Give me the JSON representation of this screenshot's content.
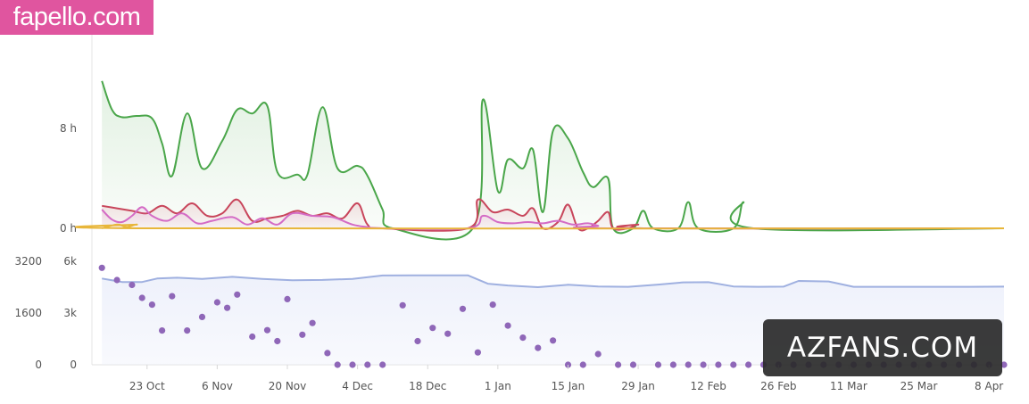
{
  "watermarks": {
    "top": "fapello.com",
    "bottom": "AZFANS.COM"
  },
  "chart_data": [
    {
      "type": "area",
      "y_ticks": [
        "8 h",
        "0 h"
      ],
      "y_tick_values": [
        8,
        0
      ],
      "ylim": [
        0,
        12
      ],
      "x_tick_labels": [
        "23 Oct",
        "6 Nov",
        "20 Nov",
        "4 Dec",
        "18 Dec",
        "1 Jan",
        "15 Jan",
        "29 Jan",
        "12 Feb",
        "26 Feb",
        "11 Mar",
        "25 Mar",
        "8 Apr"
      ],
      "x_tick_days": [
        14,
        28,
        42,
        56,
        70,
        84,
        98,
        112,
        126,
        140,
        154,
        168,
        182
      ],
      "xlim_days": [
        3,
        185
      ],
      "series": [
        {
          "color": "#4aa64a",
          "fill": true,
          "points": [
            [
              5,
              11.8
            ],
            [
              7,
              9.5
            ],
            [
              9,
              8.9
            ],
            [
              12,
              9.0
            ],
            [
              15,
              8.8
            ],
            [
              17,
              6.8
            ],
            [
              19,
              4.2
            ],
            [
              22,
              9.2
            ],
            [
              25,
              4.8
            ],
            [
              29,
              7.0
            ],
            [
              32,
              9.5
            ],
            [
              35,
              9.2
            ],
            [
              38,
              9.8
            ],
            [
              40,
              4.5
            ],
            [
              44,
              4.3
            ],
            [
              46,
              4.3
            ],
            [
              49,
              9.7
            ],
            [
              52,
              4.8
            ],
            [
              56,
              5.0
            ],
            [
              58,
              4.2
            ],
            [
              61,
              1.5
            ],
            [
              63,
              0
            ],
            [
              79,
              0
            ],
            [
              81,
              10.3
            ],
            [
              84,
              3.0
            ],
            [
              86,
              5.5
            ],
            [
              89,
              4.8
            ],
            [
              91,
              6.3
            ],
            [
              93,
              1.3
            ],
            [
              95,
              7.8
            ],
            [
              98,
              7.2
            ],
            [
              101,
              4.5
            ],
            [
              103,
              3.3
            ],
            [
              106,
              4.0
            ],
            [
              107,
              0
            ],
            [
              111,
              0
            ],
            [
              113,
              1.4
            ],
            [
              115,
              0
            ],
            [
              120,
              0
            ],
            [
              122,
              2.1
            ],
            [
              124,
              0
            ],
            [
              131,
              0
            ],
            [
              133,
              2.1
            ],
            [
              135,
              0
            ],
            [
              185,
              0
            ]
          ]
        },
        {
          "color": "#c8455b",
          "fill": true,
          "points": [
            [
              5,
              1.8
            ],
            [
              8,
              1.6
            ],
            [
              11,
              1.4
            ],
            [
              14,
              1.2
            ],
            [
              17,
              1.8
            ],
            [
              20,
              1.2
            ],
            [
              23,
              2.0
            ],
            [
              26,
              1.0
            ],
            [
              29,
              1.2
            ],
            [
              32,
              2.3
            ],
            [
              35,
              0.6
            ],
            [
              38,
              0.8
            ],
            [
              41,
              1.0
            ],
            [
              44,
              1.4
            ],
            [
              47,
              1.0
            ],
            [
              50,
              1.2
            ],
            [
              53,
              0.8
            ],
            [
              56,
              2.0
            ],
            [
              58,
              0.3
            ],
            [
              61,
              0
            ],
            [
              78,
              0
            ],
            [
              80,
              2.3
            ],
            [
              83,
              1.3
            ],
            [
              86,
              1.5
            ],
            [
              89,
              1.0
            ],
            [
              91,
              1.6
            ],
            [
              93,
              0
            ],
            [
              96,
              0.5
            ],
            [
              98,
              1.9
            ],
            [
              100,
              0
            ],
            [
              102,
              0
            ],
            [
              104,
              0.6
            ],
            [
              106,
              1.3
            ],
            [
              107,
              0
            ],
            [
              110,
              0
            ],
            [
              112,
              0.3
            ],
            [
              114,
              0
            ],
            [
              185,
              0
            ]
          ]
        },
        {
          "color": "#d46bc5",
          "fill": true,
          "points": [
            [
              5,
              1.5
            ],
            [
              7,
              0.7
            ],
            [
              9,
              0.5
            ],
            [
              11,
              1.0
            ],
            [
              13,
              1.7
            ],
            [
              15,
              1.0
            ],
            [
              18,
              0.6
            ],
            [
              21,
              1.2
            ],
            [
              24,
              0.4
            ],
            [
              27,
              0.6
            ],
            [
              31,
              0.9
            ],
            [
              34,
              0.3
            ],
            [
              37,
              0.8
            ],
            [
              40,
              0.3
            ],
            [
              43,
              1.2
            ],
            [
              47,
              1.0
            ],
            [
              51,
              0.9
            ],
            [
              55,
              0.3
            ],
            [
              58,
              0.1
            ],
            [
              61,
              0
            ],
            [
              78,
              0
            ],
            [
              81,
              1.0
            ],
            [
              84,
              0.5
            ],
            [
              87,
              0.4
            ],
            [
              90,
              0.5
            ],
            [
              93,
              0.4
            ],
            [
              96,
              0.6
            ],
            [
              99,
              0.3
            ],
            [
              102,
              0.4
            ],
            [
              104,
              0.2
            ],
            [
              106,
              0
            ],
            [
              185,
              0
            ]
          ]
        },
        {
          "color": "#e8b63a",
          "fill": false,
          "points": [
            [
              5,
              0
            ],
            [
              8,
              0.3
            ],
            [
              10,
              0.1
            ],
            [
              12,
              0.3
            ],
            [
              14,
              0
            ],
            [
              185,
              0
            ]
          ]
        }
      ]
    },
    {
      "type": "line",
      "left_axis_ticks": [
        "3200",
        "1600",
        "0"
      ],
      "left_axis_values": [
        3200,
        1600,
        0
      ],
      "right_axis_ticks": [
        "6k",
        "3k",
        "0"
      ],
      "right_axis_values": [
        6000,
        3000,
        0
      ],
      "ylim_left": [
        0,
        3200
      ],
      "ylim_right": [
        0,
        6000
      ],
      "line_color": "#9fb0e0",
      "fill_color": "#eef1fb",
      "line_points": [
        [
          5,
          5000
        ],
        [
          9,
          4800
        ],
        [
          13,
          4800
        ],
        [
          16,
          5000
        ],
        [
          20,
          5050
        ],
        [
          25,
          4980
        ],
        [
          31,
          5100
        ],
        [
          37,
          4980
        ],
        [
          43,
          4900
        ],
        [
          49,
          4920
        ],
        [
          55,
          4980
        ],
        [
          61,
          5180
        ],
        [
          67,
          5190
        ],
        [
          74,
          5190
        ],
        [
          78,
          5190
        ],
        [
          82,
          4700
        ],
        [
          86,
          4600
        ],
        [
          92,
          4500
        ],
        [
          98,
          4640
        ],
        [
          104,
          4540
        ],
        [
          110,
          4520
        ],
        [
          116,
          4650
        ],
        [
          121,
          4780
        ],
        [
          126,
          4790
        ],
        [
          131,
          4540
        ],
        [
          136,
          4520
        ],
        [
          141,
          4530
        ],
        [
          144,
          4860
        ],
        [
          150,
          4830
        ],
        [
          155,
          4520
        ],
        [
          160,
          4520
        ],
        [
          167,
          4520
        ],
        [
          172,
          4520
        ],
        [
          178,
          4520
        ],
        [
          185,
          4530
        ]
      ],
      "dot_color": "#8f67b8",
      "dots": [
        [
          5,
          3000
        ],
        [
          8,
          2620
        ],
        [
          11,
          2470
        ],
        [
          13,
          2070
        ],
        [
          15,
          1860
        ],
        [
          17,
          1060
        ],
        [
          19,
          2120
        ],
        [
          22,
          1060
        ],
        [
          25,
          1480
        ],
        [
          28,
          1930
        ],
        [
          30,
          1760
        ],
        [
          32,
          2170
        ],
        [
          35,
          870
        ],
        [
          38,
          1070
        ],
        [
          40,
          730
        ],
        [
          42,
          2030
        ],
        [
          45,
          930
        ],
        [
          47,
          1290
        ],
        [
          50,
          360
        ],
        [
          52,
          0
        ],
        [
          55,
          0
        ],
        [
          58,
          0
        ],
        [
          61,
          0
        ],
        [
          65,
          1840
        ],
        [
          68,
          730
        ],
        [
          71,
          1140
        ],
        [
          74,
          960
        ],
        [
          77,
          1730
        ],
        [
          80,
          380
        ],
        [
          83,
          1860
        ],
        [
          86,
          1210
        ],
        [
          89,
          840
        ],
        [
          92,
          520
        ],
        [
          95,
          750
        ],
        [
          98,
          0
        ],
        [
          101,
          0
        ],
        [
          104,
          330
        ],
        [
          108,
          0
        ],
        [
          111,
          0
        ],
        [
          116,
          0
        ],
        [
          119,
          0
        ],
        [
          122,
          0
        ],
        [
          125,
          0
        ],
        [
          128,
          0
        ],
        [
          131,
          0
        ],
        [
          134,
          0
        ],
        [
          137,
          0
        ],
        [
          140,
          0
        ],
        [
          143,
          0
        ],
        [
          146,
          0
        ],
        [
          149,
          0
        ],
        [
          152,
          0
        ],
        [
          155,
          0
        ],
        [
          158,
          0
        ],
        [
          161,
          0
        ],
        [
          164,
          0
        ],
        [
          167,
          0
        ],
        [
          170,
          0
        ],
        [
          173,
          0
        ],
        [
          176,
          0
        ],
        [
          179,
          0
        ],
        [
          182,
          0
        ],
        [
          185,
          0
        ]
      ]
    }
  ]
}
